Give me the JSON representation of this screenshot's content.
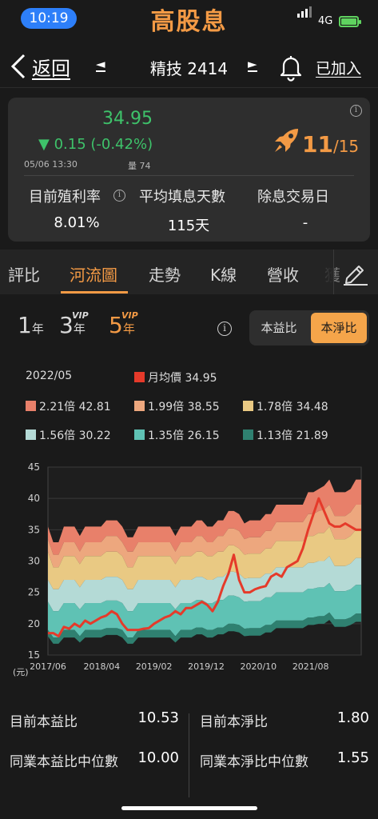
{
  "status_bar": {
    "time": "10:19",
    "network": "4G"
  },
  "app": {
    "title": "高股息"
  },
  "nav": {
    "back_label": "返回",
    "prev_icon": "◄",
    "stock_name": "精技 2414",
    "next_icon": "►",
    "added_label": "已加入"
  },
  "quote": {
    "price": "34.95",
    "change": "▼ 0.15 (-0.42%)",
    "datetime": "05/06 13:30",
    "volume": "量 74",
    "score_num": "11",
    "score_den": "/15",
    "stats": [
      {
        "label": "目前殖利率",
        "value": "8.01%",
        "has_info": true
      },
      {
        "label": "平均填息天數",
        "value": "115天",
        "has_info": false
      },
      {
        "label": "除息交易日",
        "value": "-",
        "has_info": true
      }
    ]
  },
  "tabs": [
    {
      "label": "評比",
      "active": false
    },
    {
      "label": "河流圖",
      "active": true
    },
    {
      "label": "走勢",
      "active": false
    },
    {
      "label": "K線",
      "active": false
    },
    {
      "label": "營收",
      "active": false
    },
    {
      "label": "獲",
      "active": false
    }
  ],
  "periods": [
    {
      "num": "1",
      "unit": "年",
      "vip": "",
      "active": false
    },
    {
      "num": "3",
      "unit": "年",
      "vip": "VIP",
      "active": false
    },
    {
      "num": "5",
      "unit": "年",
      "vip": "VIP",
      "active": true
    }
  ],
  "toggle": {
    "left": "本益比",
    "right": "本淨比",
    "selected": "本淨比"
  },
  "legend": {
    "date": "2022/05",
    "price_item": {
      "label": "月均價 34.95",
      "color": "#e53a2a"
    },
    "bands": [
      {
        "label": "2.21倍 42.81",
        "color": "#e8806a"
      },
      {
        "label": "1.99倍 38.55",
        "color": "#eda77e"
      },
      {
        "label": "1.78倍 34.48",
        "color": "#e9c983"
      },
      {
        "label": "1.56倍 30.22",
        "color": "#b4dad6"
      },
      {
        "label": "1.35倍 26.15",
        "color": "#5fc2b4"
      },
      {
        "label": "1.13倍 21.89",
        "color": "#2f8070"
      }
    ]
  },
  "chart_data": {
    "type": "area",
    "unit_label": "(元)",
    "ylim": [
      15,
      45
    ],
    "y_ticks": [
      "15",
      "20",
      "25",
      "30",
      "35",
      "40",
      "45"
    ],
    "x_ticks": [
      "2017/06",
      "2018/04",
      "2019/02",
      "2019/12",
      "2020/10",
      "2021/08"
    ],
    "x_range": [
      0,
      59
    ],
    "bands_top": [
      [
        35.5,
        33.0,
        33.0,
        35.5,
        35.5,
        35.5,
        34.0,
        35.5,
        35.5,
        35.5,
        35.5,
        36.5,
        36.5,
        36.5,
        35.5,
        33.8,
        33.8,
        35.5,
        35.5,
        35.5,
        35.5,
        35.5,
        35.5,
        35.5,
        34.0,
        35.5,
        35.5,
        35.5,
        36.5,
        36.5,
        35.5,
        35.5,
        36.5,
        36.5,
        38.0,
        38.0,
        37.5,
        36.0,
        36.5,
        36.5,
        36.5,
        37.5,
        37.5,
        39.0,
        39.0,
        39.0,
        39.0,
        39.0,
        39.0,
        41.0,
        41.0,
        41.5,
        42.0,
        43.0,
        41.0,
        41.0,
        41.0,
        41.5,
        43.0,
        43.0
      ],
      [
        33.5,
        31.0,
        31.0,
        33.0,
        33.0,
        33.0,
        31.5,
        33.0,
        33.0,
        33.0,
        33.0,
        34.0,
        34.0,
        34.0,
        33.0,
        31.5,
        31.5,
        33.0,
        33.0,
        33.0,
        33.0,
        33.0,
        33.0,
        33.0,
        31.5,
        33.0,
        33.0,
        33.0,
        34.0,
        34.0,
        33.0,
        33.0,
        34.0,
        34.0,
        35.2,
        35.2,
        34.8,
        33.5,
        33.8,
        33.8,
        33.8,
        34.8,
        34.8,
        36.2,
        36.2,
        36.2,
        36.2,
        36.2,
        36.2,
        37.5,
        37.5,
        38.0,
        38.2,
        39.0,
        37.2,
        37.2,
        37.2,
        37.8,
        39.0,
        39.0
      ],
      [
        31.5,
        29.0,
        29.0,
        30.8,
        30.8,
        30.8,
        29.5,
        30.8,
        30.8,
        30.8,
        30.8,
        31.5,
        31.5,
        31.5,
        30.8,
        29.0,
        29.0,
        30.8,
        30.8,
        30.8,
        30.8,
        30.8,
        30.8,
        30.8,
        29.5,
        30.8,
        30.8,
        30.8,
        31.5,
        31.5,
        30.8,
        30.8,
        31.5,
        31.5,
        32.5,
        32.5,
        32.0,
        31.0,
        31.2,
        31.2,
        31.2,
        32.0,
        32.0,
        33.2,
        33.2,
        33.2,
        33.2,
        33.2,
        33.2,
        34.0,
        34.0,
        34.5,
        34.5,
        35.5,
        33.5,
        33.5,
        33.5,
        34.0,
        35.0,
        35.0
      ],
      [
        27.0,
        25.5,
        25.5,
        27.0,
        27.0,
        27.0,
        25.8,
        27.0,
        27.0,
        27.0,
        27.0,
        27.5,
        27.5,
        27.5,
        27.0,
        25.5,
        25.5,
        27.0,
        27.0,
        27.0,
        27.0,
        27.0,
        27.0,
        27.0,
        25.8,
        27.0,
        27.0,
        27.0,
        27.5,
        27.5,
        27.0,
        27.0,
        27.5,
        27.5,
        28.3,
        28.3,
        28.0,
        27.2,
        27.3,
        27.3,
        27.3,
        28.0,
        28.0,
        29.0,
        29.0,
        29.0,
        29.0,
        29.0,
        29.0,
        29.7,
        29.7,
        30.0,
        30.0,
        30.8,
        29.2,
        29.2,
        29.2,
        29.6,
        30.5,
        30.5
      ],
      [
        23.5,
        22.0,
        22.0,
        23.3,
        23.3,
        23.3,
        22.3,
        23.3,
        23.3,
        23.3,
        23.3,
        23.7,
        23.7,
        23.7,
        23.3,
        22.0,
        22.0,
        23.3,
        23.3,
        23.3,
        23.3,
        23.3,
        23.3,
        23.3,
        22.3,
        23.3,
        23.3,
        23.3,
        23.8,
        23.8,
        23.3,
        23.3,
        23.8,
        23.8,
        24.5,
        24.5,
        24.2,
        23.5,
        23.6,
        23.6,
        23.6,
        24.2,
        24.2,
        25.0,
        25.0,
        25.0,
        25.0,
        25.0,
        25.0,
        25.6,
        25.6,
        25.8,
        25.8,
        26.5,
        25.2,
        25.2,
        25.2,
        25.5,
        26.2,
        26.2
      ],
      [
        19.0,
        17.8,
        17.8,
        19.0,
        19.0,
        19.0,
        18.0,
        19.0,
        19.0,
        19.0,
        19.0,
        19.3,
        19.3,
        19.3,
        19.0,
        17.8,
        17.8,
        19.0,
        19.0,
        19.0,
        19.0,
        19.0,
        19.0,
        19.0,
        18.0,
        19.0,
        19.0,
        19.0,
        19.4,
        19.4,
        19.0,
        19.0,
        19.4,
        19.4,
        20.0,
        20.0,
        19.8,
        19.2,
        19.3,
        19.3,
        19.3,
        19.8,
        19.8,
        20.5,
        20.5,
        20.5,
        20.5,
        20.5,
        20.5,
        21.0,
        21.0,
        21.2,
        21.2,
        21.8,
        20.7,
        20.7,
        20.7,
        21.0,
        21.6,
        21.6
      ]
    ],
    "band_floor": [
      18.0,
      16.8,
      16.8,
      17.8,
      17.8,
      17.8,
      17.0,
      17.8,
      17.8,
      17.8,
      17.8,
      18.2,
      18.2,
      18.2,
      17.8,
      16.8,
      16.8,
      17.8,
      17.8,
      17.8,
      17.8,
      17.8,
      17.8,
      17.8,
      17.0,
      17.8,
      17.8,
      17.8,
      18.3,
      18.3,
      17.8,
      17.8,
      18.3,
      18.3,
      18.8,
      18.8,
      18.6,
      18.0,
      18.1,
      18.1,
      18.1,
      18.6,
      18.6,
      19.3,
      19.3,
      19.3,
      19.3,
      19.3,
      19.3,
      19.8,
      19.8,
      20.0,
      20.0,
      20.6,
      19.5,
      19.5,
      19.5,
      19.8,
      20.3,
      20.3
    ],
    "band_colors": [
      "#e8806a",
      "#eda77e",
      "#e9c983",
      "#b4dad6",
      "#5fc2b4",
      "#2f8070"
    ],
    "price_series": {
      "name": "月均價",
      "color": "#e53a2a",
      "values": [
        18.5,
        18.5,
        18.0,
        19.5,
        19.2,
        20.0,
        19.5,
        20.5,
        20.0,
        20.5,
        21.0,
        21.3,
        22.0,
        21.5,
        20.0,
        19.0,
        19.0,
        19.0,
        19.2,
        19.3,
        20.0,
        20.5,
        21.0,
        21.3,
        22.0,
        21.5,
        22.5,
        22.5,
        23.0,
        23.5,
        23.0,
        22.0,
        23.5,
        26.0,
        28.0,
        31.0,
        27.0,
        25.0,
        25.0,
        25.5,
        25.8,
        26.0,
        27.5,
        28.0,
        27.5,
        29.0,
        29.5,
        30.0,
        32.0,
        35.0,
        37.5,
        40.0,
        38.0,
        36.0,
        35.5,
        35.5,
        36.0,
        35.5,
        35.0,
        35.0
      ]
    }
  },
  "bottom_stats": {
    "left": [
      {
        "label": "目前本益比",
        "value": "10.53"
      },
      {
        "label": "同業本益比中位數",
        "value": "10.00"
      }
    ],
    "right": [
      {
        "label": "目前本淨比",
        "value": "1.80"
      },
      {
        "label": "同業本淨比中位數",
        "value": "1.55"
      }
    ]
  }
}
